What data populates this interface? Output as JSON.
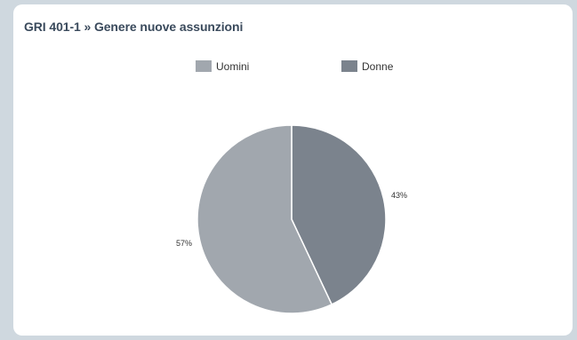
{
  "card": {
    "title": "GRI 401-1 » Genere nuove assunzioni"
  },
  "chart_data": {
    "type": "pie",
    "title": "",
    "legend_placement": "top",
    "series": [
      {
        "name": "Uomini",
        "value": 57,
        "label": "57%",
        "color": "#a1a7ae"
      },
      {
        "name": "Donne",
        "value": 43,
        "label": "43%",
        "color": "#7b838d"
      }
    ],
    "start_angle_deg": 0,
    "direction": "clockwise",
    "slice_border_color": "#ffffff"
  }
}
